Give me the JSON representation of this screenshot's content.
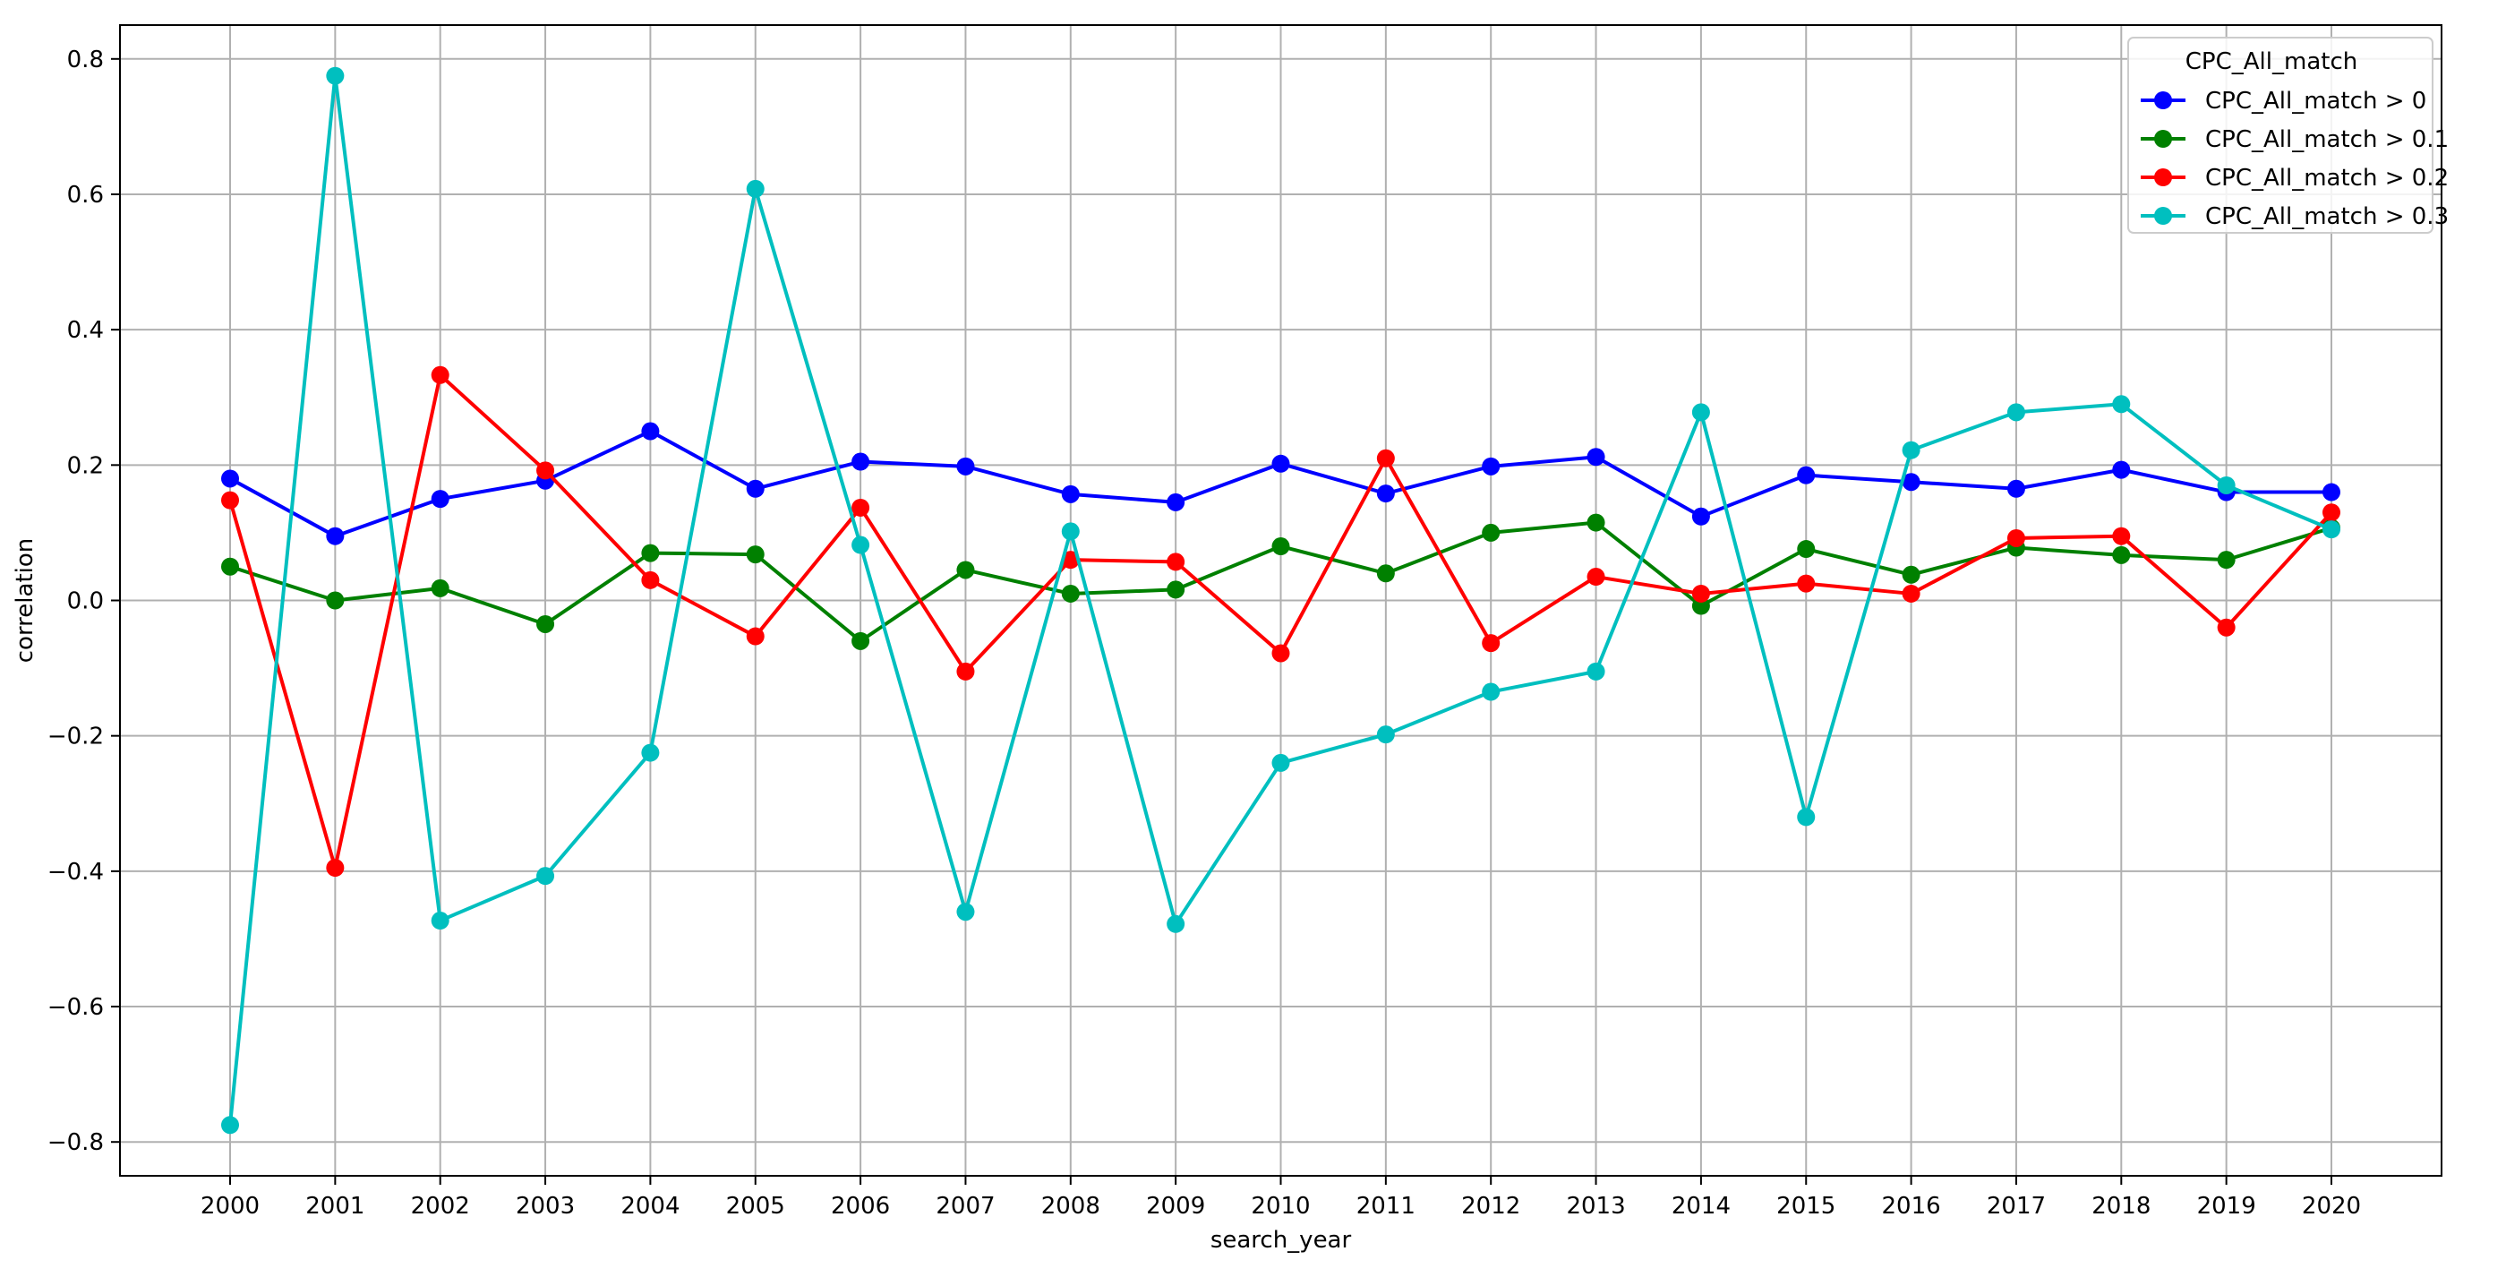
{
  "chart_data": {
    "type": "line",
    "title": "",
    "xlabel": "search_year",
    "ylabel": "correlation",
    "categories": [
      "2000",
      "2001",
      "2002",
      "2003",
      "2004",
      "2005",
      "2006",
      "2007",
      "2008",
      "2009",
      "2010",
      "2011",
      "2012",
      "2013",
      "2014",
      "2015",
      "2016",
      "2017",
      "2018",
      "2019",
      "2020"
    ],
    "yticks": [
      "0.8",
      "0.6",
      "0.4",
      "0.2",
      "0.0",
      "−0.2",
      "−0.4",
      "−0.6",
      "−0.8"
    ],
    "ytick_values": [
      0.8,
      0.6,
      0.4,
      0.2,
      0.0,
      -0.2,
      -0.4,
      -0.6,
      -0.8
    ],
    "ylim": [
      -0.85,
      0.85
    ],
    "grid": true,
    "legend": {
      "title": "CPC_All_match",
      "placement": "top-right"
    },
    "series": [
      {
        "name": "CPC_All_match > 0",
        "color": "#0000ff",
        "values": [
          0.18,
          0.095,
          0.15,
          0.177,
          0.25,
          0.165,
          0.205,
          0.198,
          0.157,
          0.145,
          0.202,
          0.158,
          0.198,
          0.212,
          0.124,
          0.185,
          0.175,
          0.165,
          0.193,
          0.16,
          0.16
        ]
      },
      {
        "name": "CPC_All_match > 0.1",
        "color": "#008000",
        "values": [
          0.05,
          0.0,
          0.018,
          -0.035,
          0.07,
          0.068,
          -0.06,
          0.045,
          0.01,
          0.016,
          0.08,
          0.04,
          0.1,
          0.115,
          -0.008,
          0.076,
          0.038,
          0.078,
          0.067,
          0.06,
          0.107
        ]
      },
      {
        "name": "CPC_All_match > 0.2",
        "color": "#ff0000",
        "values": [
          0.148,
          -0.395,
          0.333,
          0.192,
          0.03,
          -0.053,
          0.137,
          -0.105,
          0.06,
          0.057,
          -0.078,
          0.21,
          -0.063,
          0.035,
          0.01,
          0.025,
          0.01,
          0.092,
          0.095,
          -0.04,
          0.13
        ]
      },
      {
        "name": "CPC_All_match > 0.3",
        "color": "#00bfbf",
        "values": [
          -0.775,
          0.775,
          -0.473,
          -0.407,
          -0.225,
          0.608,
          0.082,
          -0.46,
          0.102,
          -0.478,
          -0.24,
          -0.198,
          -0.135,
          -0.105,
          0.278,
          -0.32,
          0.222,
          0.278,
          0.29,
          0.17,
          0.105
        ]
      }
    ]
  }
}
